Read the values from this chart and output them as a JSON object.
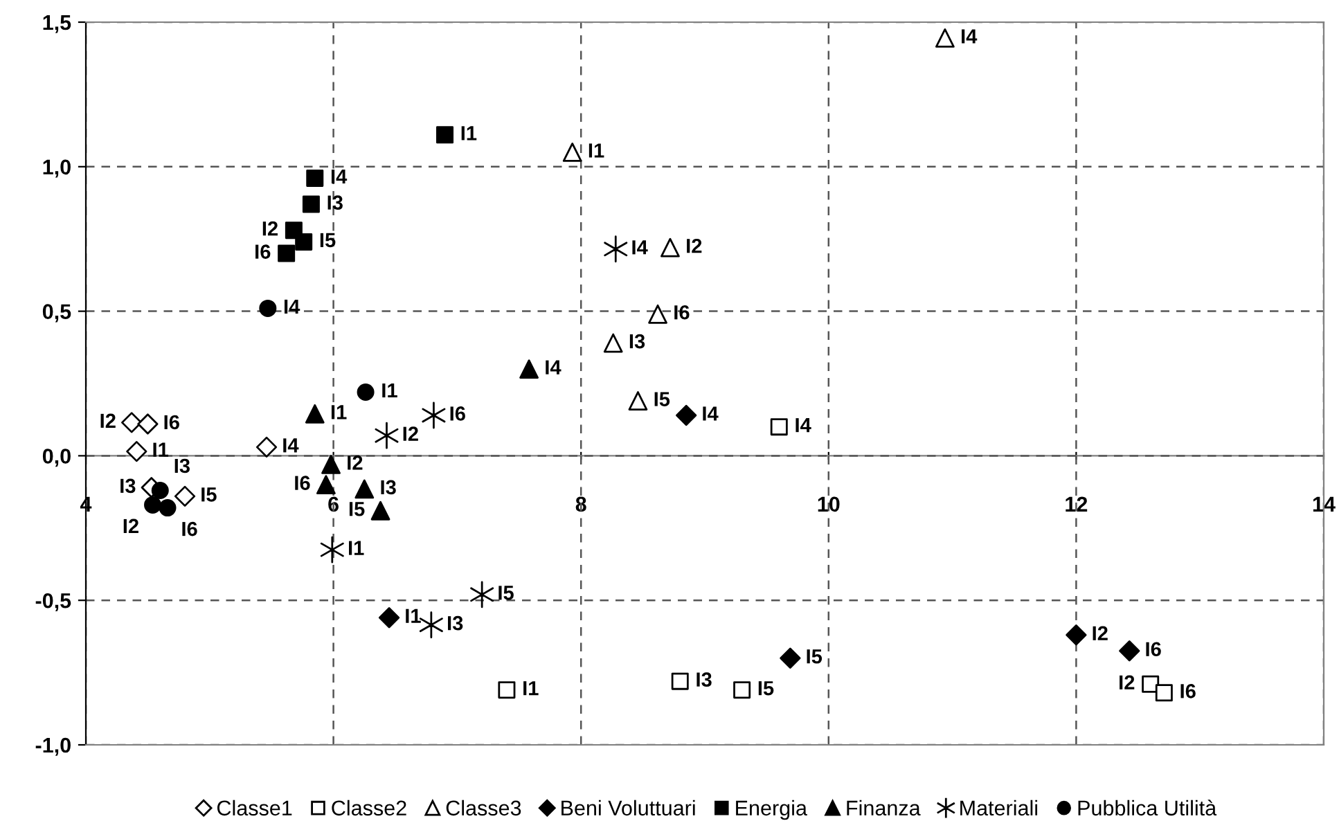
{
  "chart_data": {
    "type": "scatter",
    "xlim": [
      4,
      14
    ],
    "xticks": [
      4,
      6,
      8,
      10,
      12,
      14
    ],
    "ylim": [
      -1.0,
      1.5
    ],
    "yticks": [
      {
        "value": -1.0,
        "label": "-1,0"
      },
      {
        "value": -0.5,
        "label": "-0,5"
      },
      {
        "value": 0.0,
        "label": "0,0"
      },
      {
        "value": 0.5,
        "label": "0,5"
      },
      {
        "value": 1.0,
        "label": "1,0"
      },
      {
        "value": 1.5,
        "label": "1,5"
      }
    ],
    "grid": true,
    "legend": "bottom",
    "series": [
      {
        "name": "Classe1",
        "marker": "diamond",
        "color": "#ffffff",
        "x": [
          4.41,
          4.37,
          4.53,
          5.46,
          4.8,
          4.5
        ],
        "values": [
          0.015,
          0.115,
          -0.11,
          0.03,
          -0.14,
          0.11
        ],
        "value_labels": [
          "I1",
          "I2",
          "I3",
          "I4",
          "I5",
          "I6"
        ]
      },
      {
        "name": "Classe2",
        "marker": "square",
        "color": "#ffffff",
        "x": [
          7.4,
          12.6,
          8.8,
          9.6,
          9.3,
          12.71
        ],
        "values": [
          -0.81,
          -0.79,
          -0.78,
          0.1,
          -0.81,
          -0.82
        ],
        "value_labels": [
          "I1",
          "I2",
          "I3",
          "I4",
          "I5",
          "I6"
        ]
      },
      {
        "name": "Classe3",
        "marker": "triangle",
        "color": "#ffffff",
        "x": [
          7.93,
          8.72,
          8.26,
          10.94,
          8.46,
          8.62
        ],
        "values": [
          1.05,
          0.72,
          0.39,
          1.445,
          0.19,
          0.49
        ],
        "value_labels": [
          "I1",
          "I2",
          "I3",
          "I4",
          "I5",
          "I6"
        ]
      },
      {
        "name": "Beni Voluttuari",
        "marker": "diamond",
        "color": "#000000",
        "x": [
          6.45,
          12.0,
          8.85,
          9.69,
          12.43
        ],
        "values": [
          -0.56,
          -0.62,
          0.14,
          -0.7,
          -0.675
        ],
        "value_labels": [
          "I1",
          "I2",
          "I4",
          "I5",
          "I6"
        ]
      },
      {
        "name": "Energia",
        "marker": "square",
        "color": "#000000",
        "x": [
          6.9,
          5.68,
          5.82,
          5.85,
          5.76,
          5.62
        ],
        "values": [
          1.11,
          0.78,
          0.87,
          0.96,
          0.74,
          0.7
        ],
        "value_labels": [
          "I1",
          "I2",
          "I3",
          "I4",
          "I5",
          "I6"
        ]
      },
      {
        "name": "Finanza",
        "marker": "triangle",
        "color": "#000000",
        "x": [
          5.85,
          5.98,
          6.25,
          7.58,
          6.38,
          5.94
        ],
        "values": [
          0.145,
          -0.03,
          -0.115,
          0.3,
          -0.19,
          -0.1
        ],
        "value_labels": [
          "I1",
          "I2",
          "I3",
          "I4",
          "I5",
          "I6"
        ]
      },
      {
        "name": "Materiali",
        "marker": "cross",
        "color": "#000000",
        "x": [
          5.99,
          6.43,
          6.79,
          8.28,
          7.2,
          6.81
        ],
        "values": [
          -0.325,
          0.07,
          -0.585,
          0.715,
          -0.48,
          0.14
        ],
        "value_labels": [
          "I1",
          "I2",
          "I3",
          "I4",
          "I5",
          "I6"
        ]
      },
      {
        "name": "Pubblica Utilità",
        "marker": "circle",
        "color": "#000000",
        "x": [
          6.26,
          4.54,
          4.6,
          5.47,
          4.66
        ],
        "values": [
          0.22,
          -0.17,
          -0.12,
          0.51,
          -0.18
        ],
        "value_labels": [
          "I1",
          "I2",
          "I3",
          "I4",
          "I6"
        ]
      }
    ]
  }
}
